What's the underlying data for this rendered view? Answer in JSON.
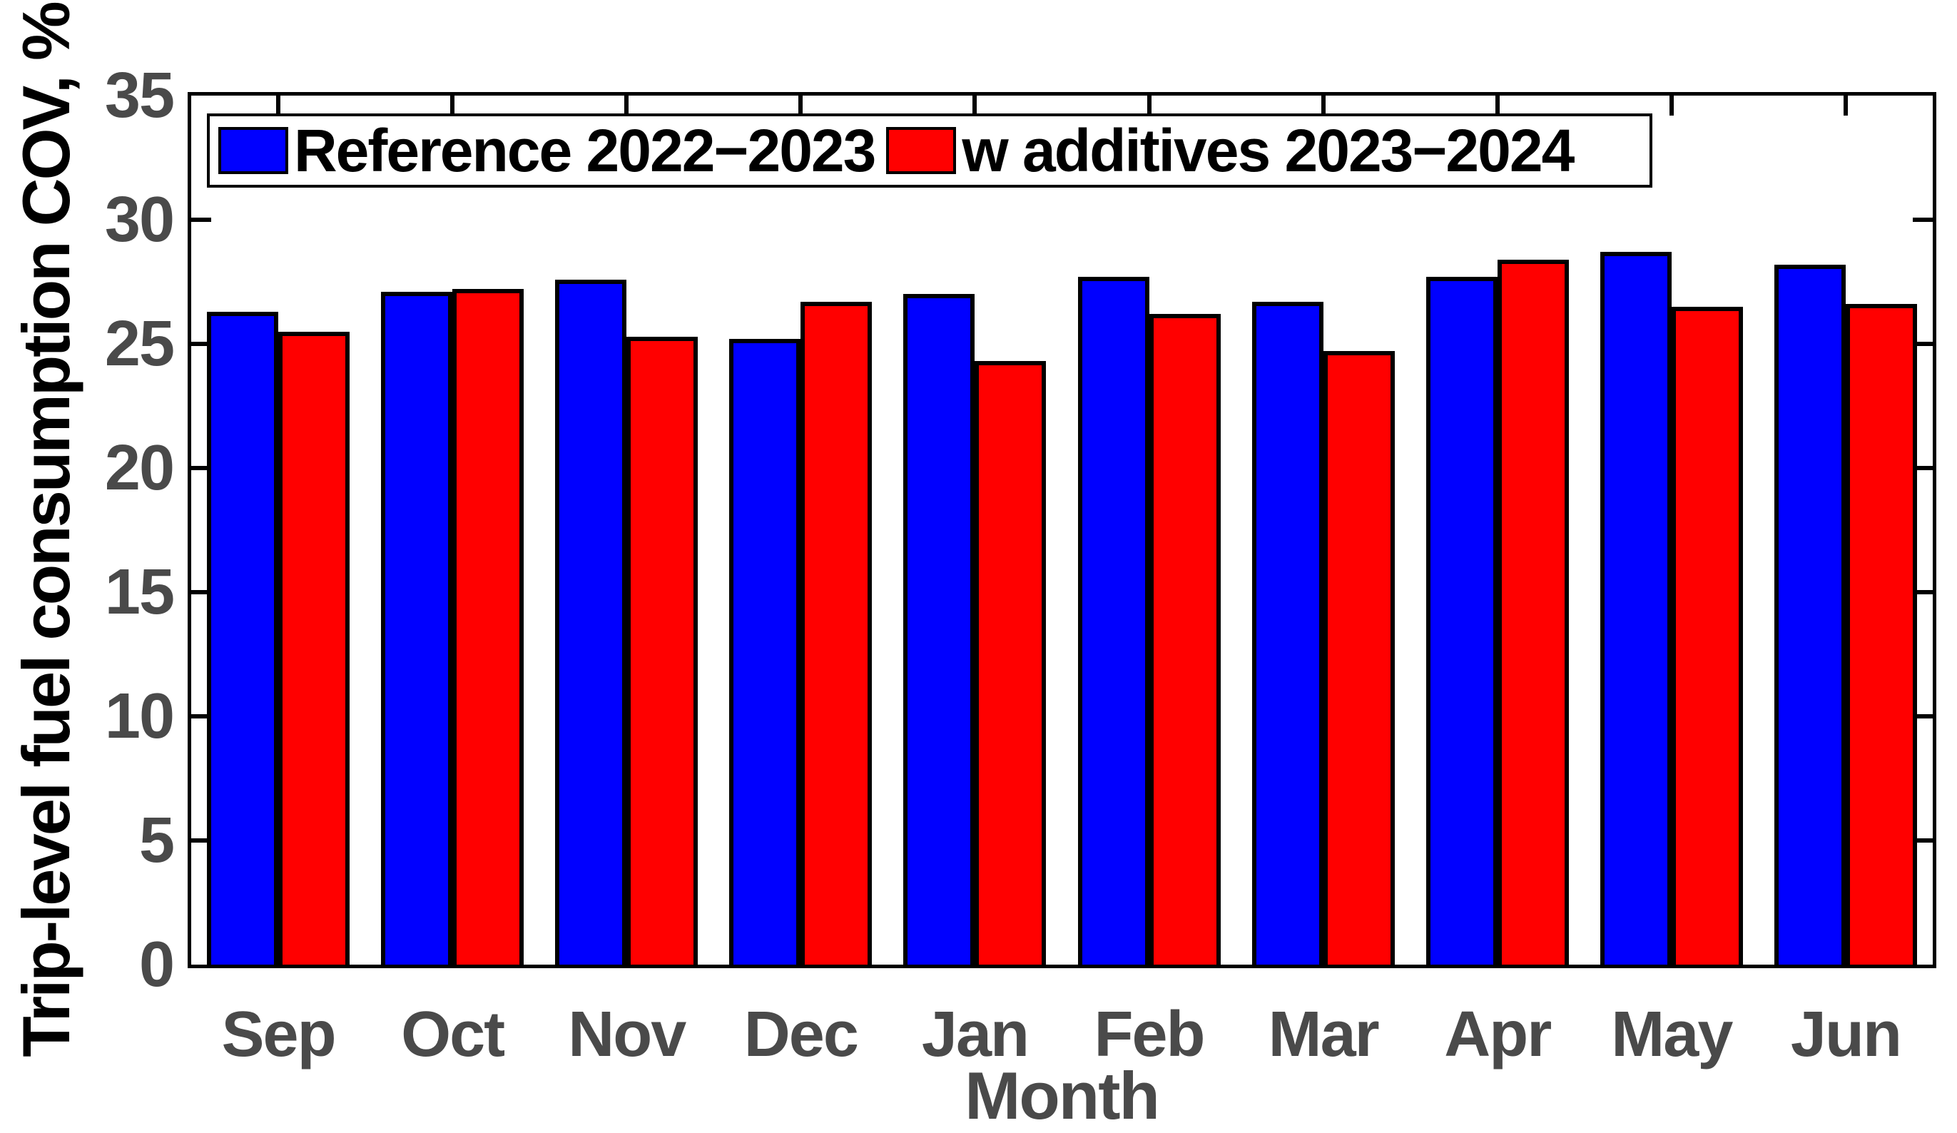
{
  "figure": {
    "background": "#ffffff",
    "axes_border_color": "#000000",
    "tick_label_color": "#4a4a4a",
    "axis_label_color": "#000000"
  },
  "chart_data": {
    "type": "bar",
    "title": "",
    "xlabel": "Month",
    "ylabel": "Trip-level fuel consumption COV, %",
    "categories": [
      "Sep",
      "Oct",
      "Nov",
      "Dec",
      "Jan",
      "Feb",
      "Mar",
      "Apr",
      "May",
      "Jun"
    ],
    "series": [
      {
        "name": "Reference 2022−2023",
        "color": "#0000ff",
        "edge_color": "#000000",
        "values": [
          26.3,
          27.1,
          27.6,
          25.2,
          27.0,
          27.7,
          26.7,
          27.7,
          28.7,
          28.2
        ]
      },
      {
        "name": "w additives 2023−2024",
        "color": "#ff0000",
        "edge_color": "#000000",
        "values": [
          25.5,
          27.2,
          25.3,
          26.7,
          24.3,
          26.2,
          24.7,
          28.4,
          26.5,
          26.6
        ]
      }
    ],
    "ylim": [
      0,
      35
    ],
    "yticks": [
      0,
      5,
      10,
      15,
      20,
      25,
      30,
      35
    ],
    "grid": false,
    "legend_position": "top-left-inside",
    "bar_group_width": 0.8
  }
}
